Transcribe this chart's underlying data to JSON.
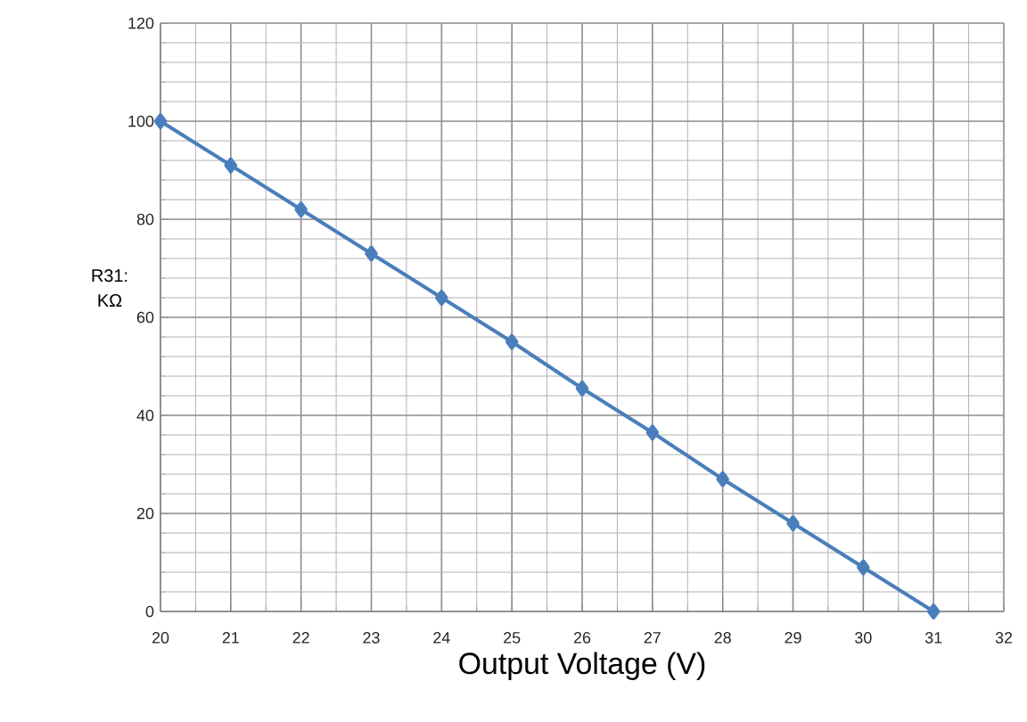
{
  "chart_data": {
    "type": "line",
    "xlabel": "Output Voltage (V)",
    "ylabel": "R31: KΩ",
    "x": [
      20,
      21,
      22,
      23,
      24,
      25,
      26,
      27,
      28,
      29,
      30,
      31
    ],
    "series": [
      {
        "color": "#4a7ebb",
        "values": [
          100,
          91,
          82,
          73,
          64,
          55,
          45.5,
          36.5,
          27,
          18,
          9,
          0
        ]
      }
    ],
    "xlim": [
      20,
      32
    ],
    "xticks": [
      20,
      21,
      22,
      23,
      24,
      25,
      26,
      27,
      28,
      29,
      30,
      31,
      32
    ],
    "ylim": [
      0,
      120
    ],
    "yticks": [
      0,
      20,
      40,
      60,
      80,
      100,
      120
    ],
    "grid": true,
    "marker": "diamond",
    "line_style": "solid"
  }
}
